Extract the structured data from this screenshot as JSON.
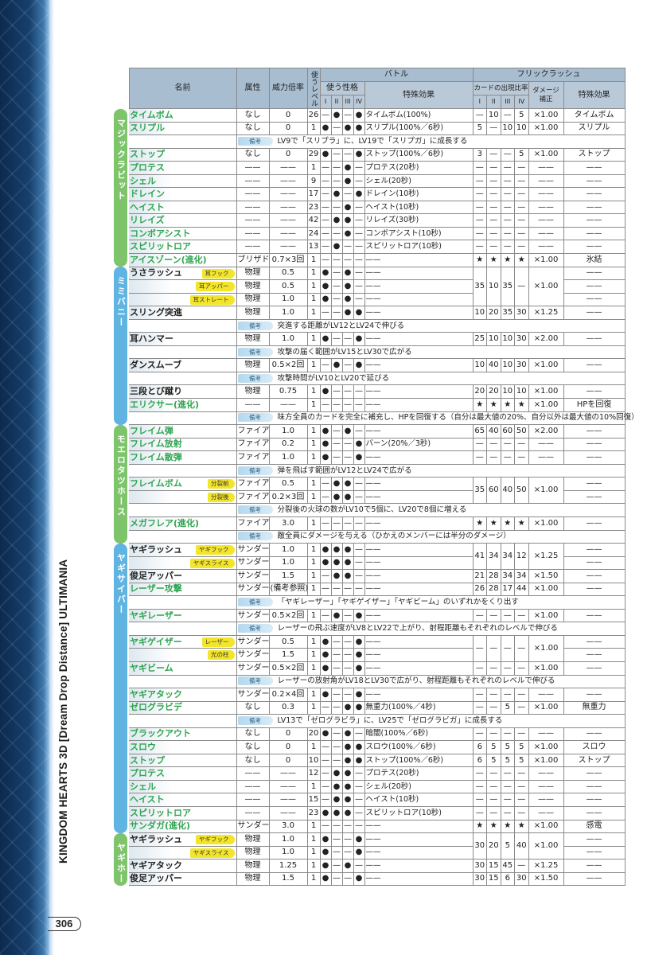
{
  "side_title": "KINGDOM HEARTS 3D [Dream Drop Distance] ULTIMANIA",
  "page_number": "306",
  "header": {
    "name": "名前",
    "attr": "属性",
    "power": "威力倍率",
    "level": "使うレベル",
    "battle": "バトル",
    "flick": "フリックラッシュ",
    "personality": "使う性格",
    "effect": "特殊効果",
    "card_ratio": "カードの出現比率",
    "damage": "ダメージ補正",
    "flick_effect": "特殊効果",
    "roman": [
      "I",
      "II",
      "III",
      "IV"
    ],
    "note_label": "備考"
  },
  "colors": {
    "green_cat": "#7dc46a",
    "blue_cat": "#5fb4e2",
    "green_name": "#2fa450",
    "tag": "#f3e52a",
    "header": "#b9c9d8"
  },
  "groups": [
    {
      "label": "マジックラビット",
      "color": "#7dc46a",
      "rows": [
        {
          "n": "タイムボム",
          "g": 1,
          "a": "なし",
          "p": "0",
          "l": "26",
          "u": [
            "—",
            "●",
            "—",
            "●"
          ],
          "e": "タイムボム(100%)",
          "f": [
            "—",
            "10",
            "—",
            "5",
            "×1.00"
          ],
          "x": "タイムボム"
        },
        {
          "n": "スリプル",
          "g": 1,
          "a": "なし",
          "p": "0",
          "l": "1",
          "u": [
            "●",
            "—",
            "●",
            "●"
          ],
          "e": "スリプル(100%／6秒)",
          "f": [
            "5",
            "—",
            "10",
            "10",
            "×1.00"
          ],
          "x": "スリプル"
        },
        {
          "note": "LV9で「スリプラ」に、LV19で「スリプガ」に成長する"
        },
        {
          "n": "ストップ",
          "g": 1,
          "a": "なし",
          "p": "0",
          "l": "29",
          "u": [
            "●",
            "—",
            "—",
            "●"
          ],
          "e": "ストップ(100%／6秒)",
          "f": [
            "3",
            "—",
            "—",
            "5",
            "×1.00"
          ],
          "x": "ストップ"
        },
        {
          "n": "プロテス",
          "g": 1,
          "a": "——",
          "p": "——",
          "l": "1",
          "u": [
            "—",
            "—",
            "●",
            "—"
          ],
          "e": "プロテス(20秒)",
          "f": [
            "—",
            "—",
            "—",
            "—",
            "——"
          ],
          "x": "——"
        },
        {
          "n": "シェル",
          "g": 1,
          "a": "——",
          "p": "——",
          "l": "9",
          "u": [
            "—",
            "—",
            "●",
            "—"
          ],
          "e": "シェル(20秒)",
          "f": [
            "—",
            "—",
            "—",
            "—",
            "——"
          ],
          "x": "——"
        },
        {
          "n": "ドレイン",
          "g": 1,
          "a": "——",
          "p": "——",
          "l": "17",
          "u": [
            "—",
            "●",
            "—",
            "●"
          ],
          "e": "ドレイン(10秒)",
          "f": [
            "—",
            "—",
            "—",
            "—",
            "——"
          ],
          "x": "——"
        },
        {
          "n": "ヘイスト",
          "g": 1,
          "a": "——",
          "p": "——",
          "l": "23",
          "u": [
            "—",
            "—",
            "●",
            "—"
          ],
          "e": "ヘイスト(10秒)",
          "f": [
            "—",
            "—",
            "—",
            "—",
            "——"
          ],
          "x": "——"
        },
        {
          "n": "リレイズ",
          "g": 1,
          "a": "——",
          "p": "——",
          "l": "42",
          "u": [
            "—",
            "●",
            "●",
            "—"
          ],
          "e": "リレイズ(30秒)",
          "f": [
            "—",
            "—",
            "—",
            "—",
            "——"
          ],
          "x": "——"
        },
        {
          "n": "コンボアシスト",
          "g": 1,
          "a": "——",
          "p": "——",
          "l": "24",
          "u": [
            "—",
            "—",
            "●",
            "—"
          ],
          "e": "コンボアシスト(10秒)",
          "f": [
            "—",
            "—",
            "—",
            "—",
            "——"
          ],
          "x": "——"
        },
        {
          "n": "スピリットロア",
          "g": 1,
          "a": "——",
          "p": "——",
          "l": "13",
          "u": [
            "—",
            "●",
            "—",
            "—"
          ],
          "e": "スピリットロア(10秒)",
          "f": [
            "—",
            "—",
            "—",
            "—",
            "——"
          ],
          "x": "——"
        },
        {
          "n": "アイスゾーン(進化)",
          "g": 1,
          "a": "ブリザド",
          "p": "0.7×3回",
          "l": "1",
          "u": [
            "—",
            "—",
            "—",
            "—"
          ],
          "e": "——",
          "f": [
            "★",
            "★",
            "★",
            "★",
            "×1.00"
          ],
          "x": "氷結"
        }
      ]
    },
    {
      "label": "ミミバニー",
      "color": "#5fb4e2",
      "rows": [
        {
          "n": "うさラッシュ",
          "t": "耳フック",
          "a": "物理",
          "p": "0.5",
          "l": "1",
          "u": [
            "●",
            "—",
            "●",
            "—"
          ],
          "e": "——",
          "f": [
            "35",
            "10",
            "35",
            "—",
            "×1.00"
          ],
          "fs": 3,
          "x": "——"
        },
        {
          "n": "",
          "t": "耳アッパー",
          "a": "物理",
          "p": "0.5",
          "l": "1",
          "u": [
            "●",
            "—",
            "●",
            "—"
          ],
          "e": "——",
          "x": "——"
        },
        {
          "n": "",
          "t": "耳ストレート",
          "a": "物理",
          "p": "1.0",
          "l": "1",
          "u": [
            "●",
            "—",
            "●",
            "—"
          ],
          "e": "——",
          "x": "——"
        },
        {
          "n": "スリング突進",
          "a": "物理",
          "p": "1.0",
          "l": "1",
          "u": [
            "—",
            "—",
            "●",
            "●"
          ],
          "e": "——",
          "f": [
            "10",
            "20",
            "35",
            "30",
            "×1.25"
          ],
          "x": "——"
        },
        {
          "note": "突進する距離がLV12とLV24で伸びる"
        },
        {
          "n": "耳ハンマー",
          "a": "物理",
          "p": "1.0",
          "l": "1",
          "u": [
            "●",
            "—",
            "—",
            "●"
          ],
          "e": "——",
          "f": [
            "25",
            "10",
            "10",
            "30",
            "×2.00"
          ],
          "x": "——"
        },
        {
          "note": "攻撃の届く範囲がLV15とLV30で広がる"
        },
        {
          "n": "ダンスムーブ",
          "a": "物理",
          "p": "0.5×2回",
          "l": "1",
          "u": [
            "—",
            "●",
            "—",
            "●"
          ],
          "e": "——",
          "f": [
            "10",
            "40",
            "10",
            "30",
            "×1.00"
          ],
          "x": "——"
        },
        {
          "note": "攻撃時間がLV10とLV20で延びる"
        },
        {
          "n": "三段とび蹴り",
          "a": "物理",
          "p": "0.75",
          "l": "1",
          "u": [
            "●",
            "—",
            "—",
            "—"
          ],
          "e": "——",
          "f": [
            "20",
            "20",
            "10",
            "10",
            "×1.00"
          ],
          "x": "——"
        },
        {
          "n": "エリクサー(進化)",
          "g": 1,
          "a": "——",
          "p": "——",
          "l": "1",
          "u": [
            "—",
            "—",
            "—",
            "—"
          ],
          "e": "——",
          "f": [
            "★",
            "★",
            "★",
            "★",
            "×1.00"
          ],
          "x": "HPを回復"
        },
        {
          "note": "味方全員のカードを完全に補充し、HPを回復する（自分は最大値の20%、自分以外は最大値の10%回復）"
        }
      ]
    },
    {
      "label": "モエロタツホース",
      "color": "#7dc46a",
      "rows": [
        {
          "n": "フレイム弾",
          "g": 1,
          "a": "ファイア",
          "p": "1.0",
          "l": "1",
          "u": [
            "●",
            "—",
            "●",
            "—"
          ],
          "e": "——",
          "f": [
            "65",
            "40",
            "60",
            "50",
            "×2.00"
          ],
          "x": "——"
        },
        {
          "n": "フレイム放射",
          "g": 1,
          "a": "ファイア",
          "p": "0.2",
          "l": "1",
          "u": [
            "●",
            "—",
            "—",
            "●"
          ],
          "e": "バーン(20%／3秒)",
          "f": [
            "—",
            "—",
            "—",
            "—",
            "——"
          ],
          "x": "——"
        },
        {
          "n": "フレイム散弾",
          "g": 1,
          "a": "ファイア",
          "p": "1.0",
          "l": "1",
          "u": [
            "●",
            "—",
            "—",
            "●"
          ],
          "e": "——",
          "f": [
            "—",
            "—",
            "—",
            "—",
            "——"
          ],
          "x": "——"
        },
        {
          "note": "弾を飛ばす範囲がLV12とLV24で広がる"
        },
        {
          "n": "フレイムボム",
          "g": 1,
          "t": "分裂前",
          "a": "ファイア",
          "p": "0.5",
          "l": "1",
          "u": [
            "—",
            "●",
            "●",
            "—"
          ],
          "e": "——",
          "f": [
            "35",
            "60",
            "40",
            "50",
            "×1.00"
          ],
          "fs": 2,
          "x": "——"
        },
        {
          "n": "",
          "g": 1,
          "t": "分裂後",
          "a": "ファイア",
          "p": "0.2×3回",
          "l": "1",
          "u": [
            "—",
            "●",
            "●",
            "—"
          ],
          "e": "——",
          "x": "——"
        },
        {
          "note": "分裂後の火球の数がLV10で5個に、LV20で8個に増える"
        },
        {
          "n": "メガフレア(進化)",
          "g": 1,
          "a": "ファイア",
          "p": "3.0",
          "l": "1",
          "u": [
            "—",
            "—",
            "—",
            "—"
          ],
          "e": "——",
          "f": [
            "★",
            "★",
            "★",
            "★",
            "×1.00"
          ],
          "x": "——"
        },
        {
          "note": "敵全員にダメージを与える（ひかえのメンバーには半分のダメージ）"
        }
      ]
    },
    {
      "label": "ヤギサイバー",
      "color": "#5fb4e2",
      "rows": [
        {
          "n": "ヤギラッシュ",
          "t": "ヤギフック",
          "a": "サンダー",
          "p": "1.0",
          "l": "1",
          "u": [
            "●",
            "●",
            "●",
            "—"
          ],
          "e": "——",
          "f": [
            "41",
            "34",
            "34",
            "12",
            "×1.25"
          ],
          "fs": 2,
          "x": "——"
        },
        {
          "n": "",
          "t": "ヤギスライス",
          "a": "サンダー",
          "p": "1.0",
          "l": "1",
          "u": [
            "●",
            "●",
            "●",
            "—"
          ],
          "e": "——",
          "x": "——"
        },
        {
          "n": "俊足アッパー",
          "a": "サンダー",
          "p": "1.5",
          "l": "1",
          "u": [
            "—",
            "●",
            "●",
            "—"
          ],
          "e": "——",
          "f": [
            "21",
            "28",
            "34",
            "34",
            "×1.50"
          ],
          "x": "——"
        },
        {
          "n": "レーザー攻撃",
          "g": 1,
          "a": "サンダー",
          "p": "(備考参照)",
          "l": "1",
          "u": [
            "—",
            "—",
            "—",
            "—"
          ],
          "e": "——",
          "f": [
            "26",
            "28",
            "17",
            "44",
            "×1.00"
          ],
          "x": "——"
        },
        {
          "note": "「ヤギレーザー」「ヤギゲイザー」「ヤギビーム」のいずれかをくり出す"
        },
        {
          "n": "ヤギレーザー",
          "g": 1,
          "a": "サンダー",
          "p": "0.5×2回",
          "l": "1",
          "u": [
            "—",
            "●",
            "—",
            "●"
          ],
          "e": "——",
          "f": [
            "—",
            "—",
            "—",
            "—",
            "×1.00"
          ],
          "x": "——"
        },
        {
          "note": "レーザーの飛ぶ速度がLV8とLV22で上がり、射程距離もそれぞれのレベルで伸びる"
        },
        {
          "n": "ヤギゲイザー",
          "g": 1,
          "t": "レーザー",
          "a": "サンダー",
          "p": "0.5",
          "l": "1",
          "u": [
            "●",
            "—",
            "—",
            "●"
          ],
          "e": "——",
          "f": [
            "—",
            "—",
            "—",
            "—",
            "×1.00"
          ],
          "fs": 2,
          "x": "——"
        },
        {
          "n": "",
          "g": 1,
          "t": "光の柱",
          "a": "サンダー",
          "p": "1.5",
          "l": "1",
          "u": [
            "●",
            "—",
            "—",
            "●"
          ],
          "e": "——",
          "x": "——"
        },
        {
          "n": "ヤギビーム",
          "g": 1,
          "a": "サンダー",
          "p": "0.5×2回",
          "l": "1",
          "u": [
            "●",
            "—",
            "—",
            "●"
          ],
          "e": "——",
          "f": [
            "—",
            "—",
            "—",
            "—",
            "×1.00"
          ],
          "x": "——"
        },
        {
          "note": "レーザーの放射角がLV18とLV30で広がり、射程距離もそれぞれのレベルで伸びる"
        },
        {
          "n": "ヤギアタック",
          "g": 1,
          "a": "サンダー",
          "p": "0.2×4回",
          "l": "1",
          "u": [
            "●",
            "—",
            "—",
            "●"
          ],
          "e": "——",
          "f": [
            "—",
            "—",
            "—",
            "—",
            "——"
          ],
          "x": "——"
        },
        {
          "n": "ゼログラビデ",
          "g": 1,
          "a": "なし",
          "p": "0.3",
          "l": "1",
          "u": [
            "—",
            "—",
            "●",
            "●"
          ],
          "e": "無重力(100%／4秒)",
          "f": [
            "—",
            "—",
            "5",
            "—",
            "×1.00"
          ],
          "x": "無重力"
        },
        {
          "note": "LV13で「ゼログラビラ」に、LV25で「ゼログラビガ」に成長する"
        },
        {
          "n": "ブラックアウト",
          "g": 1,
          "a": "なし",
          "p": "0",
          "l": "20",
          "u": [
            "●",
            "—",
            "●",
            "—"
          ],
          "e": "暗闇(100%／6秒)",
          "f": [
            "—",
            "—",
            "—",
            "—",
            "——"
          ],
          "x": "——"
        },
        {
          "n": "スロウ",
          "g": 1,
          "a": "なし",
          "p": "0",
          "l": "1",
          "u": [
            "—",
            "—",
            "●",
            "●"
          ],
          "e": "スロウ(100%／6秒)",
          "f": [
            "6",
            "5",
            "5",
            "5",
            "×1.00"
          ],
          "x": "スロウ"
        },
        {
          "n": "ストップ",
          "g": 1,
          "a": "なし",
          "p": "0",
          "l": "10",
          "u": [
            "—",
            "—",
            "●",
            "●"
          ],
          "e": "ストップ(100%／6秒)",
          "f": [
            "6",
            "5",
            "5",
            "5",
            "×1.00"
          ],
          "x": "ストップ"
        },
        {
          "n": "プロテス",
          "g": 1,
          "a": "——",
          "p": "——",
          "l": "12",
          "u": [
            "—",
            "●",
            "●",
            "—"
          ],
          "e": "プロテス(20秒)",
          "f": [
            "—",
            "—",
            "—",
            "—",
            "——"
          ],
          "x": "——"
        },
        {
          "n": "シェル",
          "g": 1,
          "a": "——",
          "p": "——",
          "l": "1",
          "u": [
            "—",
            "●",
            "●",
            "—"
          ],
          "e": "シェル(20秒)",
          "f": [
            "—",
            "—",
            "—",
            "—",
            "——"
          ],
          "x": "——"
        },
        {
          "n": "ヘイスト",
          "g": 1,
          "a": "——",
          "p": "——",
          "l": "15",
          "u": [
            "—",
            "●",
            "●",
            "—"
          ],
          "e": "ヘイスト(10秒)",
          "f": [
            "—",
            "—",
            "—",
            "—",
            "——"
          ],
          "x": "——"
        },
        {
          "n": "スピリットロア",
          "g": 1,
          "a": "——",
          "p": "——",
          "l": "23",
          "u": [
            "●",
            "●",
            "●",
            "—"
          ],
          "e": "スピリットロア(10秒)",
          "f": [
            "—",
            "—",
            "—",
            "—",
            "——"
          ],
          "x": "——"
        },
        {
          "n": "サンダガ(進化)",
          "g": 1,
          "a": "サンダー",
          "p": "3.0",
          "l": "1",
          "u": [
            "—",
            "—",
            "—",
            "—"
          ],
          "e": "——",
          "f": [
            "★",
            "★",
            "★",
            "★",
            "×1.00"
          ],
          "x": "感電"
        }
      ]
    },
    {
      "label": "ヤギホーン",
      "color": "#7dc46a",
      "rows": [
        {
          "n": "ヤギラッシュ",
          "t": "ヤギフック",
          "a": "物理",
          "p": "1.0",
          "l": "1",
          "u": [
            "●",
            "—",
            "—",
            "●"
          ],
          "e": "——",
          "f": [
            "30",
            "20",
            "5",
            "40",
            "×1.00"
          ],
          "fs": 2,
          "x": "——"
        },
        {
          "n": "",
          "t": "ヤギスライス",
          "a": "物理",
          "p": "1.0",
          "l": "1",
          "u": [
            "●",
            "—",
            "—",
            "●"
          ],
          "e": "——",
          "x": "——"
        },
        {
          "n": "ヤギアタック",
          "a": "物理",
          "p": "1.25",
          "l": "1",
          "u": [
            "●",
            "—",
            "●",
            "—"
          ],
          "e": "——",
          "f": [
            "30",
            "15",
            "45",
            "—",
            "×1.25"
          ],
          "x": "——"
        },
        {
          "n": "俊足アッパー",
          "a": "物理",
          "p": "1.5",
          "l": "1",
          "u": [
            "●",
            "—",
            "—",
            "●"
          ],
          "e": "——",
          "f": [
            "30",
            "15",
            "6",
            "30",
            "×1.50"
          ],
          "x": "——"
        }
      ]
    }
  ]
}
